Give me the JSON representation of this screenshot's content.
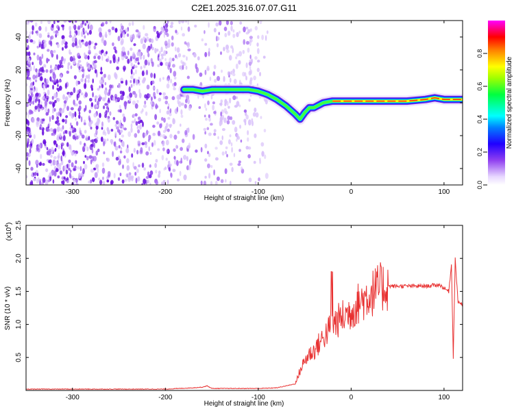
{
  "title": "C2E1.2025.316.07.07.G11",
  "top_plot": {
    "xlabel": "Height of straight line (km)",
    "ylabel": "Frequency (Hz)",
    "xlim": [
      -350,
      120
    ],
    "ylim": [
      -50,
      50
    ],
    "xticks": [
      -300,
      -200,
      -100,
      0,
      100
    ],
    "yticks": [
      -40,
      -20,
      0,
      20,
      40
    ],
    "x_tick_labels": [
      "-300",
      "-200",
      "-100",
      "0",
      "100"
    ],
    "y_tick_labels": [
      "-40",
      "-20",
      "0",
      "20",
      "40"
    ],
    "colorbar": {
      "label": "Normalized spectral amplitude",
      "range": [
        0,
        1
      ],
      "tick_labels": [
        "0.0",
        "0.2",
        "0.4",
        "0.6",
        "0.8"
      ],
      "colors": [
        "#ffffff",
        "#b070f0",
        "#5a10e0",
        "#0000ff",
        "#00c8ff",
        "#00ffff",
        "#00ff00",
        "#ffff00",
        "#ff8000",
        "#ff0000",
        "#ff00ff"
      ]
    }
  },
  "chart_data": [
    {
      "type": "heatmap",
      "title": "C2E1.2025.316.07.07.G11",
      "xlabel": "Height of straight line (km)",
      "ylabel": "Frequency (Hz)",
      "xlim": [
        -350,
        120
      ],
      "ylim": [
        -50,
        50
      ],
      "noise_region_x": [
        -350,
        -90
      ],
      "peak_track": {
        "x": [
          -180,
          -170,
          -160,
          -150,
          -140,
          -130,
          -120,
          -110,
          -100,
          -90,
          -80,
          -70,
          -60,
          -55,
          -50,
          -45,
          -40,
          -30,
          -20,
          -10,
          0,
          20,
          40,
          60,
          80,
          90,
          100,
          110,
          120
        ],
        "y": [
          8,
          8,
          7,
          8,
          8,
          8,
          8,
          8,
          7,
          5,
          2,
          -2,
          -7,
          -10,
          -6,
          -3,
          -3,
          0,
          1,
          1,
          1,
          1,
          1,
          1,
          2,
          3,
          2,
          2,
          2
        ]
      }
    },
    {
      "type": "line",
      "xlabel": "Height of straight line (km)",
      "ylabel": "SNR (10 * v/v)",
      "y_multiplier": "(x10^4)",
      "xlim": [
        -350,
        120
      ],
      "ylim": [
        0,
        2.5
      ],
      "xticks": [
        -300,
        -200,
        -100,
        0,
        100
      ],
      "yticks": [
        0.5,
        1.0,
        1.5,
        2.0,
        2.5
      ],
      "x_tick_labels": [
        "-300",
        "-200",
        "-100",
        "0",
        "100"
      ],
      "y_tick_labels": [
        "0.5",
        "1.0",
        "1.5",
        "2.0",
        "2.5"
      ],
      "color": "#e83030",
      "series": [
        {
          "name": "SNR",
          "x": [
            -350,
            -300,
            -250,
            -200,
            -170,
            -160,
            -155,
            -150,
            -120,
            -100,
            -80,
            -60,
            -55,
            -50,
            -45,
            -40,
            -35,
            -30,
            -25,
            -20,
            -15,
            -10,
            -5,
            0,
            10,
            20,
            30,
            40,
            60,
            80,
            95,
            100,
            105,
            108,
            110,
            112,
            115,
            120
          ],
          "y": [
            0.02,
            0.02,
            0.02,
            0.02,
            0.04,
            0.05,
            0.07,
            0.03,
            0.03,
            0.03,
            0.04,
            0.1,
            0.3,
            0.45,
            0.55,
            0.6,
            0.7,
            0.8,
            0.9,
            1.0,
            1.05,
            1.1,
            1.15,
            1.2,
            1.35,
            1.45,
            1.55,
            1.58,
            1.58,
            1.58,
            1.6,
            1.55,
            1.5,
            1.9,
            0.5,
            2.0,
            1.35,
            1.3
          ]
        }
      ]
    }
  ],
  "bottom_plot": {
    "ylabel": "SNR (10 * v/v)",
    "multiplier_base": "(x10",
    "multiplier_exp": "4",
    "multiplier_close": ")",
    "xlabel": "Height of straight line (km)"
  }
}
